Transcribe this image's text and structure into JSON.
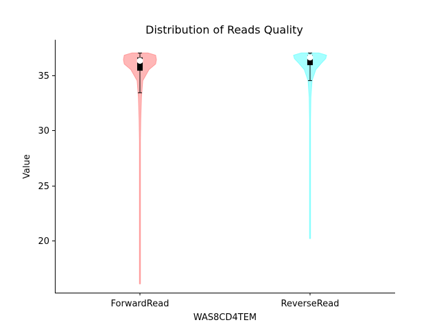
{
  "chart_data": {
    "type": "violin",
    "title": "Distribution of Reads Quality",
    "xlabel": "WAS8CD4TEM",
    "ylabel": "Value",
    "ylim": [
      15.3,
      38.2
    ],
    "yticks": [
      20,
      25,
      30,
      35
    ],
    "grid": false,
    "series": [
      {
        "name": "ForwardRead",
        "color": "#ff9999",
        "min": 16.1,
        "whisker_low": 33.4,
        "q1": 35.4,
        "median": 36.3,
        "q3": 36.6,
        "whisker_high": 37.0,
        "max": 37.0,
        "density": [
          [
            16.1,
            0.004
          ],
          [
            18.0,
            0.008
          ],
          [
            22.0,
            0.012
          ],
          [
            26.0,
            0.018
          ],
          [
            29.0,
            0.03
          ],
          [
            31.0,
            0.05
          ],
          [
            33.0,
            0.09
          ],
          [
            34.5,
            0.17
          ],
          [
            35.5,
            0.55
          ],
          [
            36.0,
            0.95
          ],
          [
            36.4,
            1.0
          ],
          [
            36.8,
            0.95
          ],
          [
            37.0,
            0.5
          ]
        ]
      },
      {
        "name": "ReverseRead",
        "color": "#80ffff",
        "min": 20.2,
        "whisker_low": 34.5,
        "q1": 35.9,
        "median": 36.6,
        "q3": 36.8,
        "whisker_high": 37.0,
        "max": 37.0,
        "density": [
          [
            20.2,
            0.004
          ],
          [
            24.0,
            0.008
          ],
          [
            28.0,
            0.014
          ],
          [
            31.0,
            0.025
          ],
          [
            33.0,
            0.05
          ],
          [
            34.5,
            0.12
          ],
          [
            35.5,
            0.35
          ],
          [
            36.1,
            0.7
          ],
          [
            36.5,
            0.95
          ],
          [
            36.8,
            1.0
          ],
          [
            37.0,
            0.55
          ]
        ]
      }
    ]
  }
}
